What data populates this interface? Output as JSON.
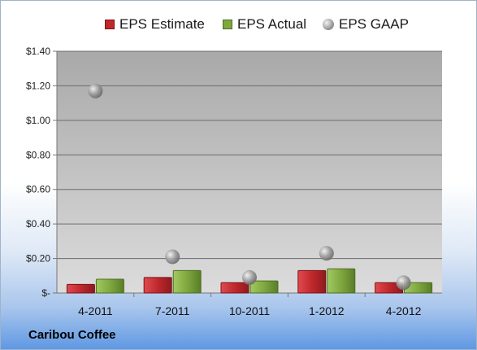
{
  "chart_data": {
    "type": "bar",
    "title": "",
    "xlabel": "",
    "ylabel": "",
    "categories": [
      "4-2011",
      "7-2011",
      "10-2011",
      "1-2012",
      "4-2012"
    ],
    "series": [
      {
        "name": "EPS Estimate",
        "mark": "bar",
        "color": "#c0282d",
        "values": [
          0.05,
          0.09,
          0.06,
          0.13,
          0.06
        ]
      },
      {
        "name": "EPS Actual",
        "mark": "bar",
        "color": "#7fa83f",
        "values": [
          0.08,
          0.13,
          0.07,
          0.14,
          0.06
        ]
      },
      {
        "name": "EPS GAAP",
        "mark": "point",
        "color": "#9a9a9a",
        "values": [
          1.17,
          0.21,
          0.09,
          0.23,
          0.06
        ]
      }
    ],
    "ylim": [
      0,
      1.4
    ],
    "yticks": [
      0,
      0.2,
      0.4,
      0.6,
      0.8,
      1.0,
      1.2,
      1.4
    ],
    "ytick_labels": [
      "$-",
      "$0.20",
      "$0.40",
      "$0.60",
      "$0.80",
      "$1.00",
      "$1.20",
      "$1.40"
    ],
    "grid": true,
    "legend_position": "top"
  },
  "company": "Caribou Coffee"
}
